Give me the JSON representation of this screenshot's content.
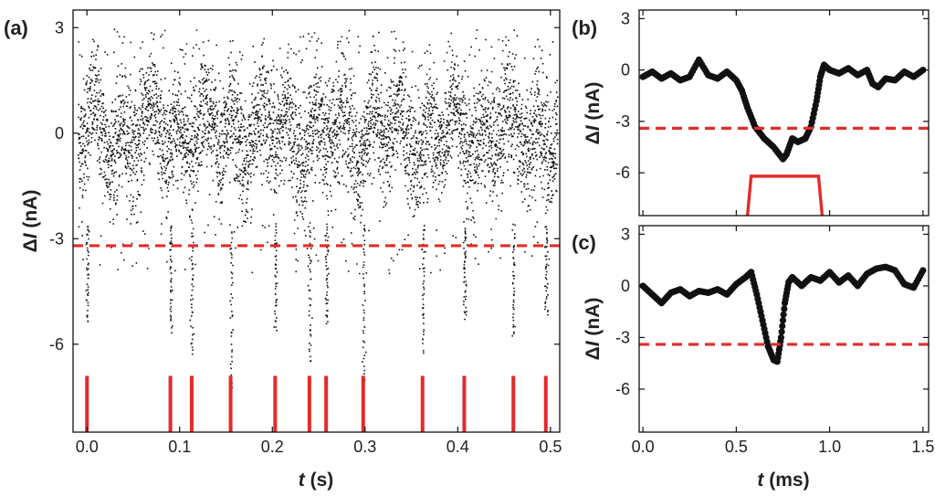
{
  "colors": {
    "data": "#111111",
    "threshold": "#e32b2b",
    "event": "#e32b2b"
  },
  "chart_data": [
    {
      "panel": "(a)",
      "type": "scatter",
      "xlabel_var": "t",
      "xlabel_unit": "(s)",
      "ylabel_prefix": "Δ",
      "ylabel_var": "I",
      "ylabel_unit": "(nA)",
      "xlim": [
        -0.015,
        0.51
      ],
      "ylim": [
        -8.5,
        3.5
      ],
      "xticks": [
        0.0,
        0.1,
        0.2,
        0.3,
        0.4,
        0.5
      ],
      "xtick_labels": [
        "0.0",
        "0.1",
        "0.2",
        "0.3",
        "0.4",
        "0.5"
      ],
      "yticks": [
        3,
        0,
        -3,
        -6
      ],
      "ytick_labels": [
        "3",
        "0",
        "-3",
        "-6"
      ],
      "threshold": -3.2,
      "baseline_noise_range": [
        -2.6,
        2.9
      ],
      "event_times": [
        0.0,
        0.09,
        0.113,
        0.155,
        0.203,
        0.24,
        0.258,
        0.298,
        0.362,
        0.407,
        0.46,
        0.495
      ],
      "event_minima": [
        -5.4,
        -5.6,
        -6.3,
        -7.3,
        -5.6,
        -6.5,
        -5.4,
        -7.0,
        -6.2,
        -5.3,
        -5.8,
        -5.2
      ],
      "event_marker_range": [
        -6.9,
        -8.5
      ],
      "grid": false,
      "legend": "none"
    },
    {
      "panel": "(b)",
      "type": "scatter",
      "xlim": [
        -0.02,
        1.53
      ],
      "ylim": [
        -8.5,
        3.5
      ],
      "xticks": [
        0.0,
        0.5,
        1.0,
        1.5
      ],
      "yticks": [
        3,
        0,
        -3,
        -6
      ],
      "ytick_labels": [
        "3",
        "0",
        "-3",
        "-6"
      ],
      "ylabel_prefix": "Δ",
      "ylabel_var": "I",
      "ylabel_unit": "(nA)",
      "threshold": -3.4,
      "x": [
        0.0,
        0.05,
        0.1,
        0.15,
        0.2,
        0.25,
        0.3,
        0.35,
        0.4,
        0.45,
        0.5,
        0.53,
        0.56,
        0.6,
        0.65,
        0.7,
        0.75,
        0.77,
        0.8,
        0.83,
        0.87,
        0.9,
        0.93,
        0.95,
        0.97,
        1.0,
        1.05,
        1.1,
        1.15,
        1.2,
        1.23,
        1.26,
        1.3,
        1.35,
        1.4,
        1.45,
        1.5
      ],
      "y": [
        -0.4,
        -0.1,
        -0.5,
        -0.2,
        -0.6,
        -0.4,
        0.6,
        -0.3,
        -0.5,
        -0.1,
        -0.6,
        -1.2,
        -2.2,
        -3.3,
        -4.0,
        -4.5,
        -5.2,
        -4.9,
        -4.0,
        -4.2,
        -4.0,
        -3.3,
        -1.8,
        -0.4,
        0.3,
        0.0,
        -0.2,
        0.1,
        -0.3,
        0.0,
        -0.8,
        -1.0,
        -0.5,
        -0.6,
        -0.1,
        -0.4,
        0.0
      ],
      "event_marker": {
        "start": 0.56,
        "end": 0.96,
        "top": -6.2,
        "bottom": -8.5
      },
      "grid": false,
      "legend": "none"
    },
    {
      "panel": "(c)",
      "type": "scatter",
      "xlabel_var": "t",
      "xlabel_unit": "(ms)",
      "ylabel_prefix": "Δ",
      "ylabel_var": "I",
      "ylabel_unit": "(nA)",
      "xlim": [
        -0.02,
        1.53
      ],
      "ylim": [
        -8.5,
        3.5
      ],
      "xticks": [
        0.0,
        0.5,
        1.0,
        1.5
      ],
      "xtick_labels": [
        "0.0",
        "0.5",
        "1.0",
        "1.5"
      ],
      "yticks": [
        3,
        0,
        -3,
        -6
      ],
      "ytick_labels": [
        "3",
        "0",
        "-3",
        "-6"
      ],
      "threshold": -3.4,
      "x": [
        0.0,
        0.05,
        0.1,
        0.15,
        0.2,
        0.25,
        0.3,
        0.35,
        0.4,
        0.45,
        0.5,
        0.55,
        0.58,
        0.61,
        0.64,
        0.67,
        0.7,
        0.72,
        0.74,
        0.76,
        0.78,
        0.8,
        0.85,
        0.9,
        0.95,
        1.0,
        1.05,
        1.1,
        1.15,
        1.2,
        1.25,
        1.3,
        1.35,
        1.4,
        1.45,
        1.5
      ],
      "y": [
        0.0,
        -0.5,
        -1.0,
        -0.4,
        -0.2,
        -0.6,
        -0.3,
        -0.4,
        -0.2,
        -0.5,
        0.1,
        0.5,
        0.8,
        -0.5,
        -2.0,
        -3.5,
        -4.3,
        -4.4,
        -3.0,
        -1.0,
        0.2,
        0.5,
        0.0,
        0.5,
        0.3,
        0.8,
        0.2,
        0.6,
        0.0,
        0.7,
        1.0,
        1.1,
        0.9,
        0.1,
        -0.1,
        0.9
      ],
      "grid": false,
      "legend": "none"
    }
  ]
}
